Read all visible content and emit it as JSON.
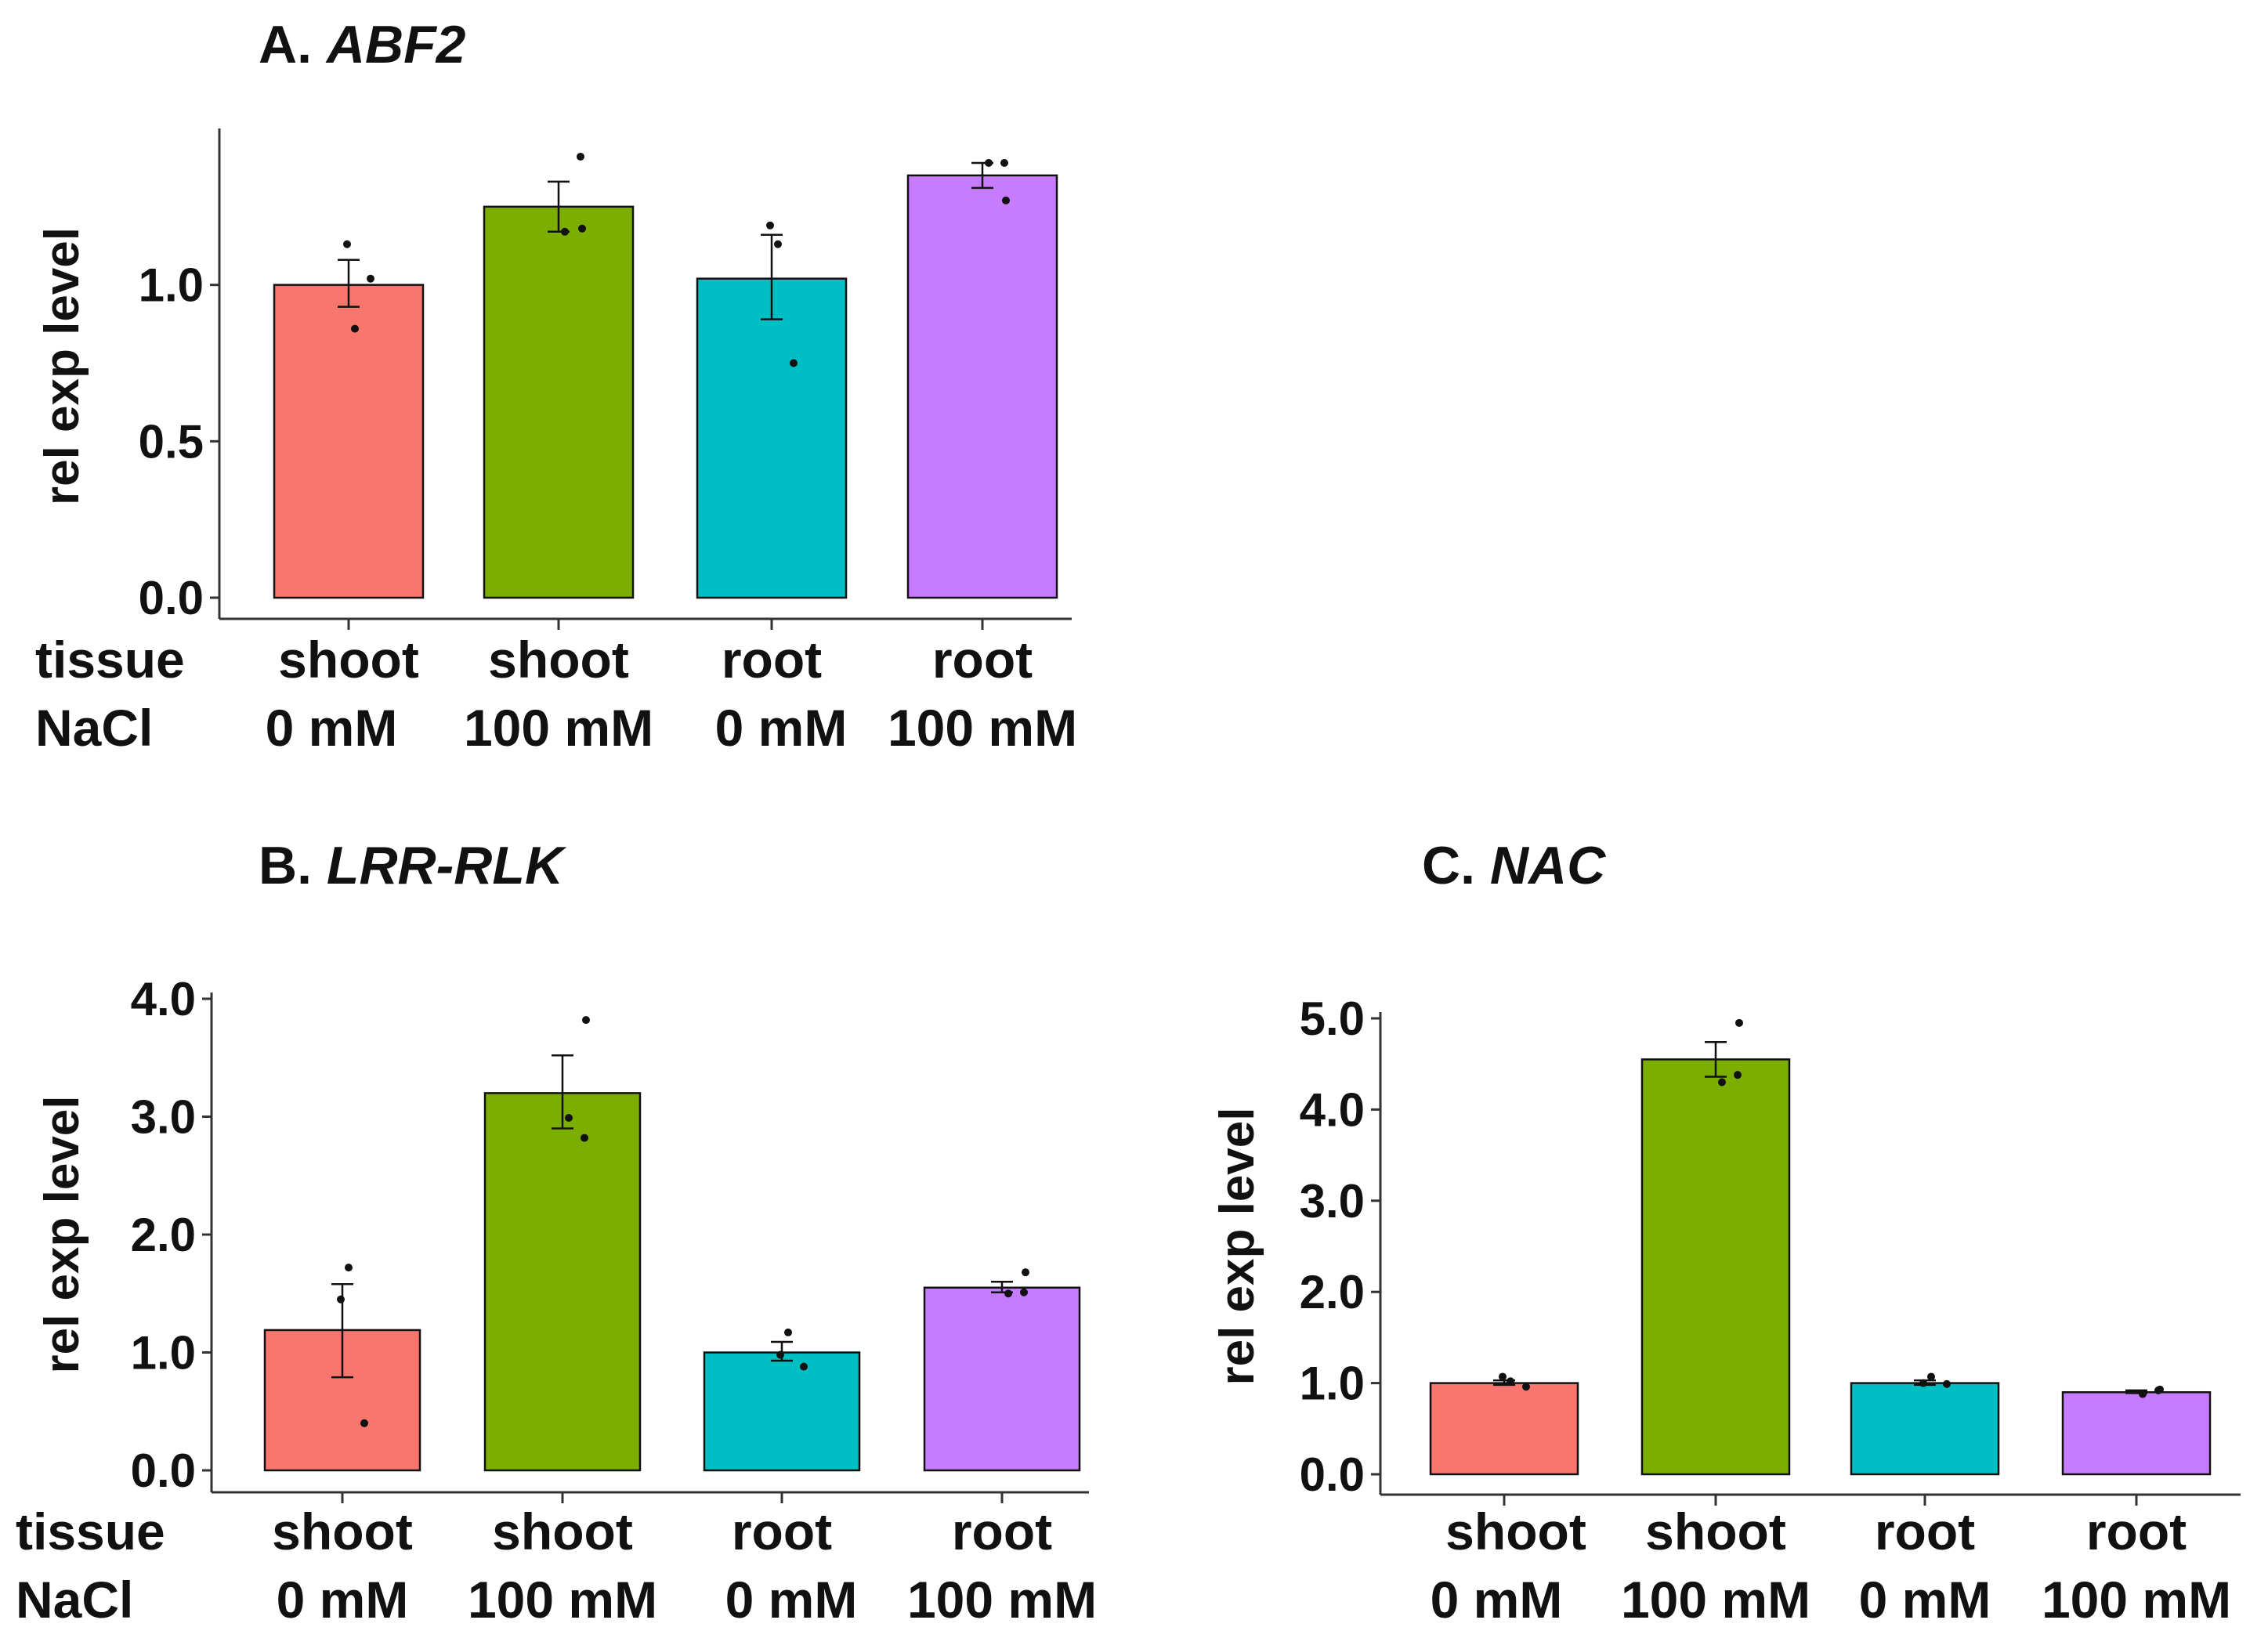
{
  "chart_data": [
    {
      "type": "bar",
      "title_prefix": "A.",
      "title_gene": "ABF2",
      "ylabel": "rel exp level",
      "row_labels": [
        "tissue",
        "NaCl"
      ],
      "categories": [
        {
          "tissue": "shoot",
          "nacl": "0 mM"
        },
        {
          "tissue": "shoot",
          "nacl": "100 mM"
        },
        {
          "tissue": "root",
          "nacl": "0 mM"
        },
        {
          "tissue": "root",
          "nacl": "100 mM"
        }
      ],
      "values": [
        1.0,
        1.25,
        1.02,
        1.35
      ],
      "error_low": [
        0.93,
        1.17,
        0.89,
        1.31
      ],
      "error_high": [
        1.08,
        1.33,
        1.16,
        1.39
      ],
      "points": [
        [
          1.13,
          0.86,
          1.02
        ],
        [
          1.18,
          1.17,
          1.41
        ],
        [
          1.19,
          1.13,
          0.75
        ],
        [
          1.27,
          1.39,
          1.39
        ]
      ],
      "yticks": [
        "0.0",
        "0.5",
        "1.0"
      ],
      "ytick_values": [
        0,
        0.5,
        1.0
      ],
      "ylim": [
        0,
        1.48
      ],
      "colors": [
        "#F8766D",
        "#7CAE00",
        "#00BFC4",
        "#C77CFF"
      ]
    },
    {
      "type": "bar",
      "title_prefix": "B.",
      "title_gene": "LRR-RLK",
      "ylabel": "rel exp level",
      "row_labels": [
        "tissue",
        "NaCl"
      ],
      "categories": [
        {
          "tissue": "shoot",
          "nacl": "0 mM"
        },
        {
          "tissue": "shoot",
          "nacl": "100 mM"
        },
        {
          "tissue": "root",
          "nacl": "0 mM"
        },
        {
          "tissue": "root",
          "nacl": "100 mM"
        }
      ],
      "values": [
        1.19,
        3.2,
        1.0,
        1.55
      ],
      "error_low": [
        0.79,
        2.9,
        0.93,
        1.51
      ],
      "error_high": [
        1.58,
        3.52,
        1.09,
        1.6
      ],
      "points": [
        [
          1.45,
          1.72,
          0.4
        ],
        [
          3.82,
          2.99,
          2.82
        ],
        [
          0.98,
          1.17,
          0.88
        ],
        [
          1.68,
          1.5,
          1.51
        ]
      ],
      "yticks": [
        "0.0",
        "1.0",
        "2.0",
        "3.0",
        "4.0"
      ],
      "ytick_values": [
        0,
        1,
        2,
        3,
        4
      ],
      "ylim": [
        0,
        4.0
      ],
      "colors": [
        "#F8766D",
        "#7CAE00",
        "#00BFC4",
        "#C77CFF"
      ]
    },
    {
      "type": "bar",
      "title_prefix": "C.",
      "title_gene": "NAC",
      "ylabel": "rel exp level",
      "row_labels": [],
      "categories": [
        {
          "tissue": "shoot",
          "nacl": "0 mM"
        },
        {
          "tissue": "shoot",
          "nacl": "100 mM"
        },
        {
          "tissue": "root",
          "nacl": "0 mM"
        },
        {
          "tissue": "root",
          "nacl": "100 mM"
        }
      ],
      "values": [
        1.0,
        4.55,
        1.0,
        0.9
      ],
      "error_low": [
        0.98,
        4.36,
        0.98,
        0.89
      ],
      "error_high": [
        1.03,
        4.74,
        1.03,
        0.92
      ],
      "points": [
        [
          1.07,
          1.02,
          0.96
        ],
        [
          4.95,
          4.3,
          4.38
        ],
        [
          1.0,
          1.07,
          0.99
        ],
        [
          0.93,
          0.88,
          0.92
        ]
      ],
      "yticks": [
        "0.0",
        "1.0",
        "2.0",
        "3.0",
        "4.0",
        "5.0"
      ],
      "ytick_values": [
        0,
        1,
        2,
        3,
        4,
        5
      ],
      "ylim": [
        0,
        5.0
      ],
      "colors": [
        "#F8766D",
        "#7CAE00",
        "#00BFC4",
        "#C77CFF"
      ]
    }
  ]
}
